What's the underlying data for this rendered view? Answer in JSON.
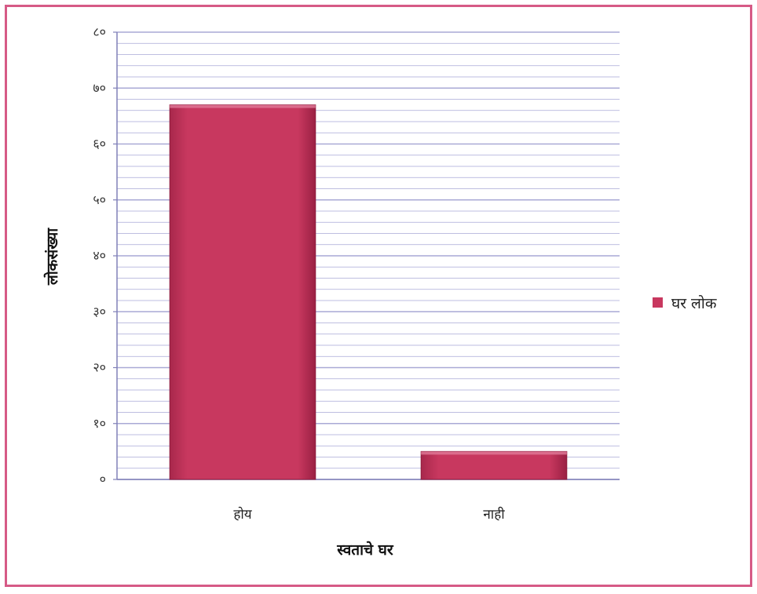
{
  "chart_data": {
    "type": "bar",
    "categories": [
      "होय",
      "नाही"
    ],
    "series": [
      {
        "name": "घर लोक",
        "values": [
          67,
          5
        ],
        "color": "#c8385f"
      }
    ],
    "xlabel": "स्वताचे घर",
    "ylabel": "लोकसंख्या",
    "ylim": [
      0,
      80
    ],
    "yticks": [
      0,
      10,
      20,
      30,
      40,
      50,
      60,
      70,
      80
    ],
    "ytick_labels": [
      "०",
      "१०",
      "२०",
      "३०",
      "४०",
      "५०",
      "६०",
      "७०",
      "८०"
    ],
    "grid": true,
    "legend_position": "right",
    "colors": {
      "bar": "#c8385f",
      "grid": "#a9a9d6",
      "frame": "#d65a86"
    }
  }
}
